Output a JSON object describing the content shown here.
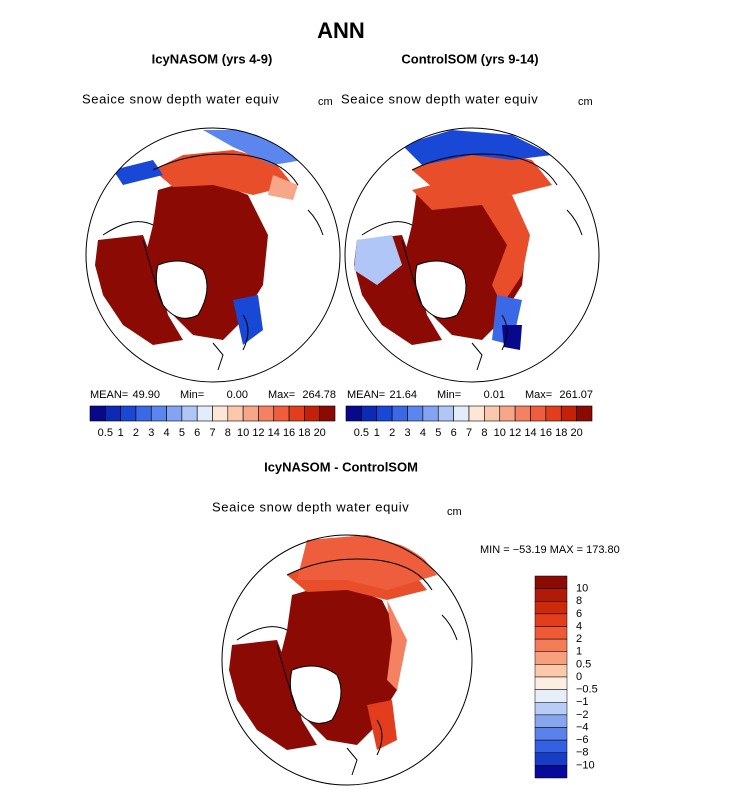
{
  "title": "ANN",
  "panels": [
    {
      "title": "IcyNASOM (yrs 4-9)",
      "variable": "Seaice snow depth water equiv",
      "units": "cm",
      "mean_label": "MEAN=",
      "mean": "49.90",
      "min_label": "Min=",
      "min": "0.00",
      "max_label": "Max=",
      "max": "264.78"
    },
    {
      "title": "ControlSOM (yrs 9-14)",
      "variable": "Seaice snow depth water equiv",
      "units": "cm",
      "mean_label": "MEAN=",
      "mean": "21.64",
      "min_label": "Min=",
      "min": "0.01",
      "max_label": "Max=",
      "max": "261.07"
    }
  ],
  "colorbar": {
    "levels": [
      "0.5",
      "1",
      "2",
      "3",
      "4",
      "5",
      "6",
      "7",
      "8",
      "10",
      "12",
      "14",
      "16",
      "18",
      "20"
    ],
    "colors": [
      "#08088c",
      "#0c2ab4",
      "#1a48d6",
      "#3a68e6",
      "#5a86ee",
      "#82a4f2",
      "#b0c6f6",
      "#e2ecfa",
      "#fde6d6",
      "#fbc8ae",
      "#f8a688",
      "#f48262",
      "#ef5e3c",
      "#e23e1e",
      "#c42208",
      "#8c0a04"
    ]
  },
  "difference": {
    "title": "IcyNASOM - ControlSOM",
    "variable": "Seaice snow depth water equiv",
    "units": "cm",
    "range": "MIN = −53.19 MAX = 173.80",
    "levels": [
      "10",
      "8",
      "6",
      "4",
      "2",
      "1",
      "0.5",
      "0",
      "−0.5",
      "−1",
      "−2",
      "−4",
      "−6",
      "−8",
      "−10"
    ],
    "colors": [
      "#8c0a04",
      "#b01a06",
      "#cc2a0a",
      "#e23e1e",
      "#ee5a36",
      "#f47c58",
      "#f8a07e",
      "#fcc8aa",
      "#fdeee4",
      "#e6eefa",
      "#b8ccf6",
      "#86a6f0",
      "#5a82ea",
      "#3460e2",
      "#163cc8",
      "#08089a"
    ]
  }
}
